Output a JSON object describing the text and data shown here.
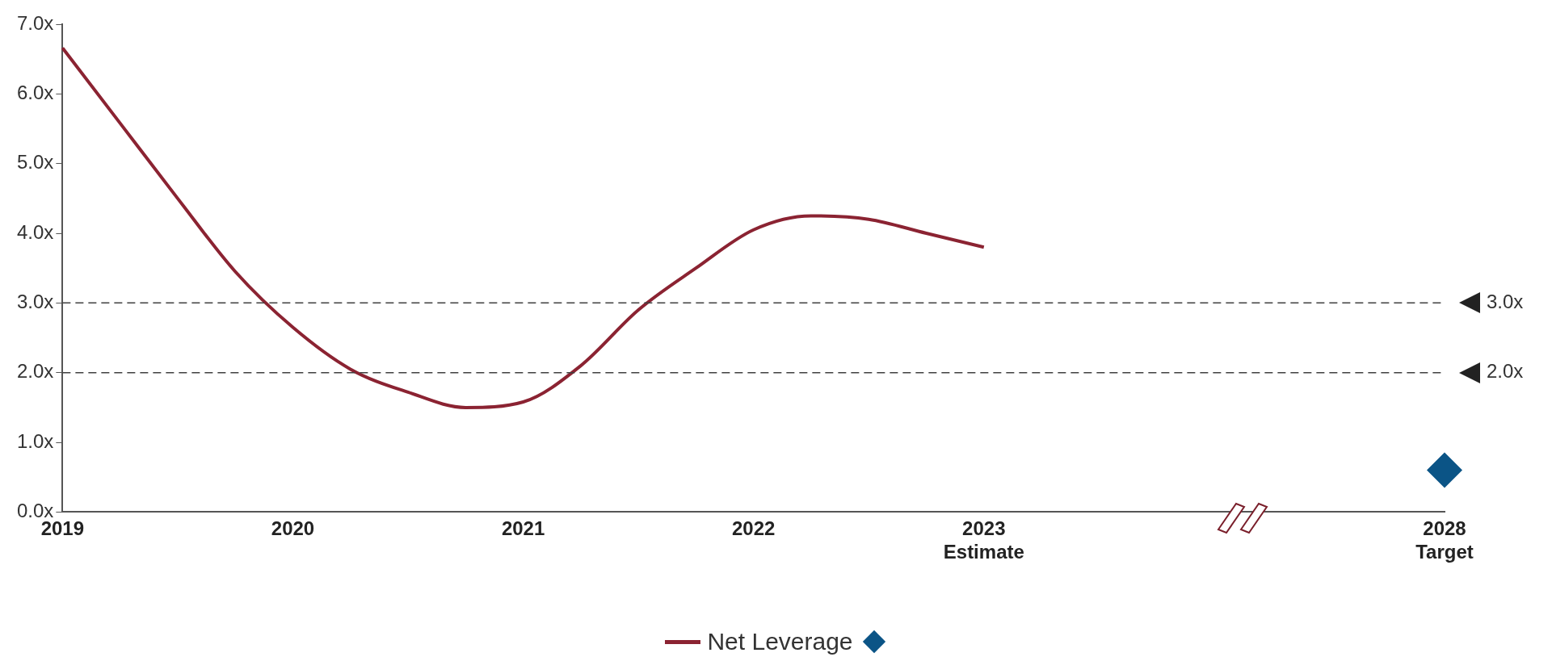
{
  "chart_data": {
    "type": "line",
    "categories": [
      "2019",
      null,
      null,
      null,
      "2020",
      null,
      null,
      null,
      "2021",
      null,
      null,
      null,
      "2022",
      null,
      null,
      null,
      "2023\nEstimate",
      null,
      null,
      null,
      null,
      null,
      null,
      null,
      "2028\nTarget"
    ],
    "series": [
      {
        "name": "Net Leverage",
        "color": "#8b2332",
        "marker": "none",
        "values": [
          6.66,
          5.58,
          4.5,
          3.45,
          2.65,
          2.05,
          1.72,
          1.5,
          1.58,
          2.1,
          2.9,
          3.5,
          4.05,
          4.25,
          4.2,
          4.0,
          3.8,
          null,
          null,
          null,
          null,
          null,
          null,
          null,
          null
        ]
      },
      {
        "type": "scatter",
        "color": "#0b5486",
        "marker": "diamond",
        "values": [
          null,
          null,
          null,
          null,
          null,
          null,
          null,
          null,
          null,
          null,
          null,
          null,
          null,
          null,
          null,
          null,
          null,
          null,
          null,
          null,
          null,
          null,
          null,
          null,
          0.6
        ]
      }
    ],
    "ylim": [
      0,
      7
    ],
    "yticks": [
      {
        "value": 0,
        "label": "0.0x"
      },
      {
        "value": 1,
        "label": "1.0x"
      },
      {
        "value": 2,
        "label": "2.0x"
      },
      {
        "value": 3,
        "label": "3.0x"
      },
      {
        "value": 4,
        "label": "4.0x"
      },
      {
        "value": 5,
        "label": "5.0x"
      },
      {
        "value": 6,
        "label": "6.0x"
      },
      {
        "value": 7,
        "label": "7.0x"
      }
    ],
    "ref_lines": [
      {
        "axis": "y",
        "value": 3,
        "label": "3.0x",
        "color": "#404040",
        "line_style": "dashed"
      },
      {
        "axis": "y",
        "value": 2,
        "label": "2.0x",
        "color": "#404040",
        "line_style": "dashed"
      }
    ],
    "grid": false,
    "legend": "bottom"
  }
}
